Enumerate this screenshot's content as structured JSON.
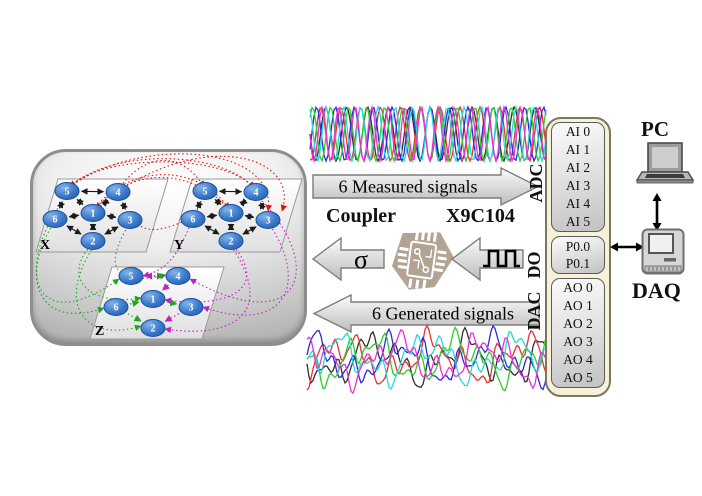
{
  "network": {
    "planes": [
      {
        "label": "X",
        "nodes": [
          "5",
          "4",
          "1",
          "6",
          "3",
          "2"
        ]
      },
      {
        "label": "Y",
        "nodes": [
          "5",
          "4",
          "1",
          "6",
          "3",
          "2"
        ]
      },
      {
        "label": "Z",
        "nodes": [
          "5",
          "4",
          "1",
          "6",
          "3",
          "2"
        ]
      }
    ],
    "colors": {
      "node_fill": "#3a79cb",
      "intra_plane_edges": "#1a1a1a",
      "xy_links": "#dd1515",
      "xz_links": "#23a323",
      "yz_links": "#c320c3"
    }
  },
  "signal_chain": {
    "measured_label": "6 Measured signals",
    "generated_label": "6 Generated signals",
    "coupler_label": "Coupler",
    "digipot_label": "X9C104",
    "sigma_symbol": "σ",
    "adc_label": "ADC",
    "do_label": "DO",
    "dac_label": "DAC",
    "waveform_colors": [
      "#303030",
      "#e83131",
      "#2b2bd8",
      "#2ecc2e",
      "#29d8d8",
      "#e832d8"
    ]
  },
  "daq_panel": {
    "analog_inputs": [
      "AI 0",
      "AI 1",
      "AI 2",
      "AI 3",
      "AI 4",
      "AI 5"
    ],
    "digital_lines": [
      "P0.0",
      "P0.1"
    ],
    "analog_outputs": [
      "AO 0",
      "AO 1",
      "AO 2",
      "AO 3",
      "AO 4",
      "AO 5"
    ]
  },
  "devices": {
    "pc_label": "PC",
    "daq_label": "DAQ"
  }
}
